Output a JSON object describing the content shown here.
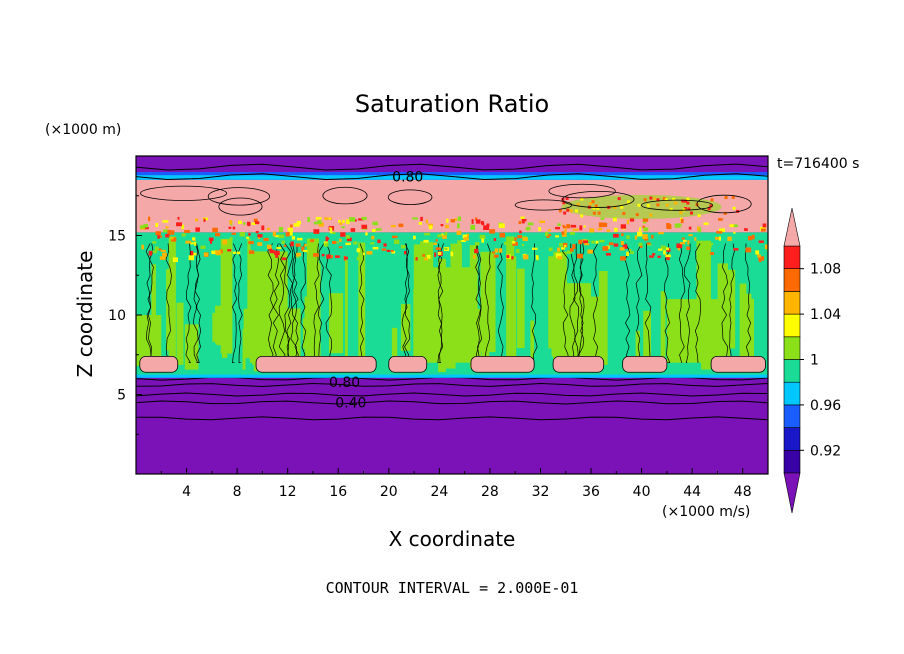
{
  "chart_data": {
    "type": "heatmap",
    "title": "Saturation Ratio",
    "xlabel": "X coordinate",
    "ylabel": "Z coordinate",
    "x_unit_label": "(×1000 m/s)",
    "y_unit_label": "(×1000 m)",
    "time_label": "t=716400 s",
    "footer": "CONTOUR INTERVAL = 2.000E-01",
    "xlim": [
      0,
      50
    ],
    "ylim": [
      0,
      20
    ],
    "x_ticks": [
      4,
      8,
      12,
      16,
      20,
      24,
      28,
      32,
      36,
      40,
      44,
      48
    ],
    "y_ticks": [
      5,
      10,
      15
    ],
    "contour_labels": [
      {
        "text": "0.80",
        "x": 21.5,
        "y": 18.7
      },
      {
        "text": "0.80",
        "x": 16.5,
        "y": 5.8
      },
      {
        "text": "0.40",
        "x": 17.0,
        "y": 4.5
      }
    ],
    "colorbar": {
      "levels": [
        0.9,
        0.92,
        0.94,
        0.96,
        0.98,
        1.0,
        1.02,
        1.04,
        1.06,
        1.08,
        1.1
      ],
      "labels": [
        {
          "value": 0.92,
          "text": "0.92"
        },
        {
          "value": 0.96,
          "text": "0.96"
        },
        {
          "value": 1.0,
          "text": "1"
        },
        {
          "value": 1.04,
          "text": "1.04"
        },
        {
          "value": 1.08,
          "text": "1.08"
        }
      ],
      "colors": [
        "#3a00a8",
        "#1818c8",
        "#1a5cff",
        "#00c8ff",
        "#1adc96",
        "#8ce01a",
        "#ffff00",
        "#ffb400",
        "#ff6a00",
        "#ff1e1e"
      ],
      "under_color": "#7b12b8",
      "over_color": "#f4a8a8"
    },
    "field_colors": {
      "deep": "#7b12b8",
      "dry_band": "#6e10b0",
      "green": "#1adc96",
      "lime": "#8ce01a",
      "pink": "#f4a8a8",
      "blue": "#1a5cff",
      "cyan": "#00c8ff"
    }
  }
}
